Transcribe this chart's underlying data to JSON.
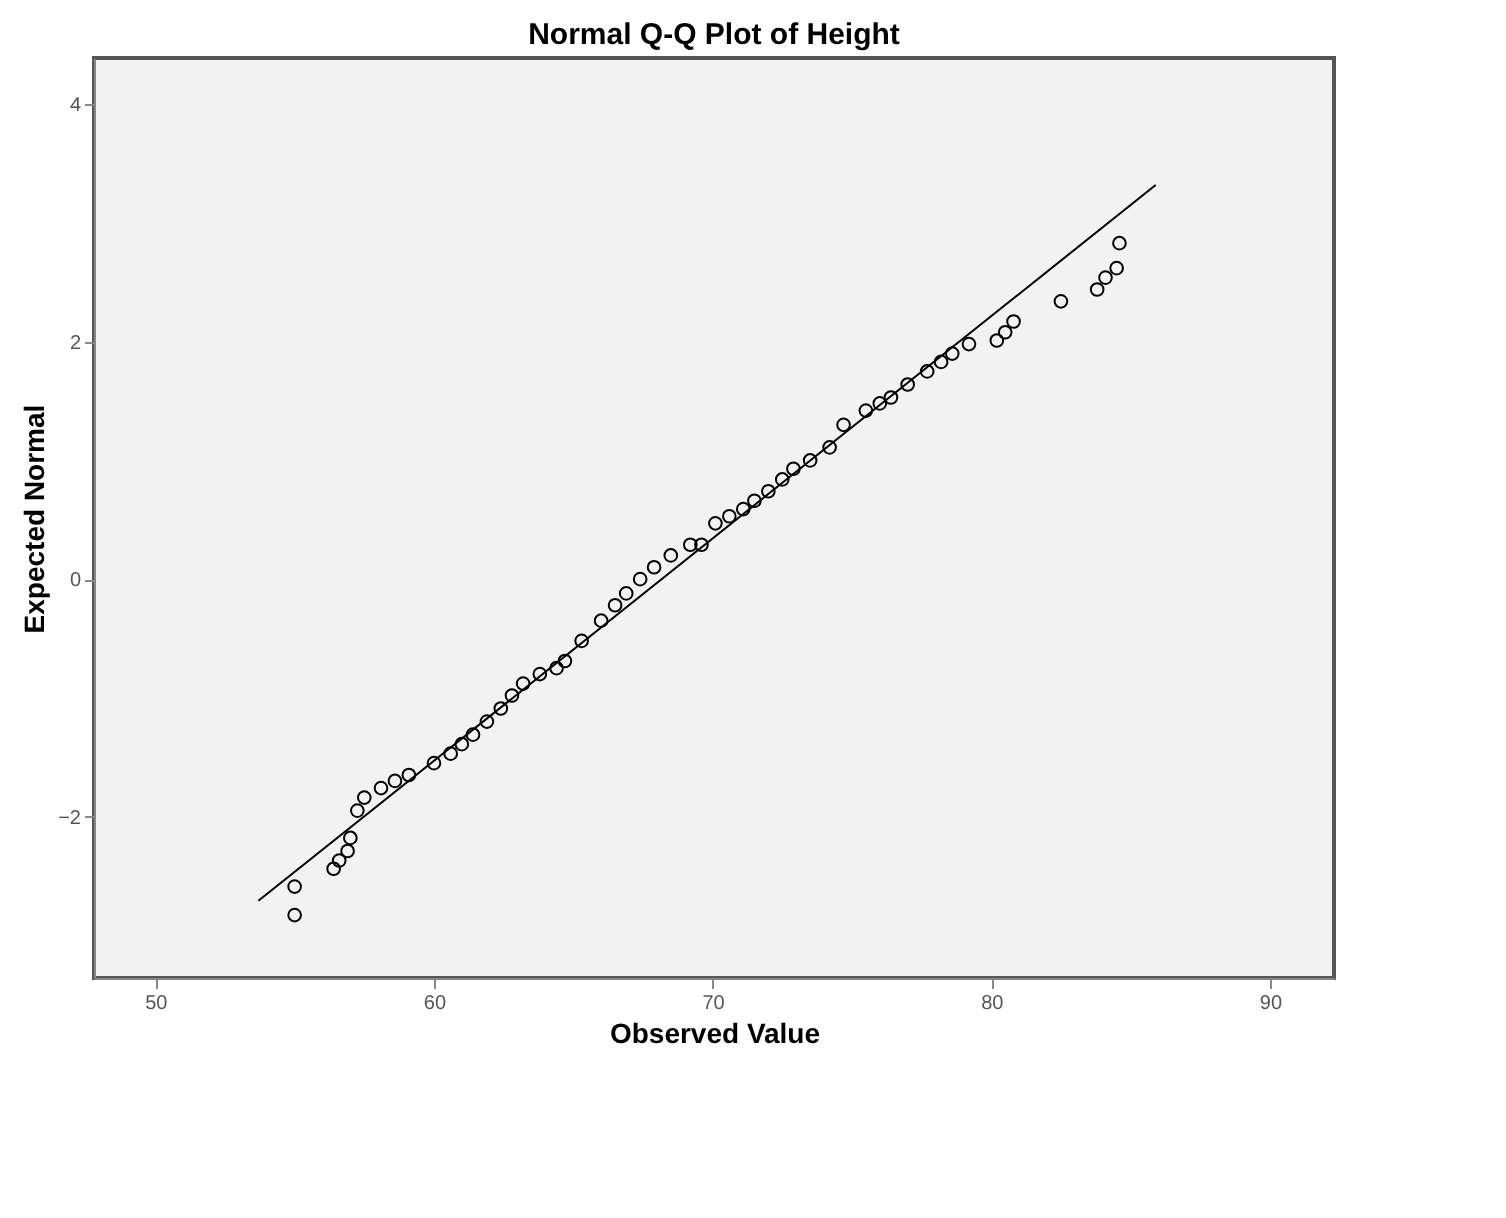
{
  "chart_data": {
    "type": "scatter",
    "title": "Normal Q-Q Plot of Height",
    "xlabel": "Observed Value",
    "ylabel": "Expected Normal",
    "xlim": [
      47.8,
      92.3
    ],
    "ylim": [
      -3.36,
      4.39
    ],
    "xticks": [
      50,
      60,
      70,
      80,
      90
    ],
    "yticks": [
      -2,
      0,
      2,
      4
    ],
    "grid": false,
    "marker": "circle",
    "series": [
      {
        "color": "#000000",
        "x": [
          55.0,
          55.0,
          56.4,
          56.6,
          56.9,
          57.0,
          57.25,
          57.5,
          58.1,
          58.6,
          59.1,
          60.0,
          60.6,
          61.0,
          61.4,
          61.9,
          62.4,
          62.8,
          63.2,
          63.8,
          64.4,
          64.7,
          65.3,
          66.0,
          66.5,
          66.9,
          67.4,
          67.9,
          68.5,
          69.2,
          69.6,
          70.1,
          70.6,
          71.1,
          71.5,
          72.0,
          72.5,
          72.9,
          73.5,
          74.2,
          74.7,
          75.5,
          76.0,
          76.4,
          77.0,
          77.7,
          78.2,
          78.6,
          79.2,
          80.2,
          80.5,
          80.8,
          82.5,
          83.8,
          84.1,
          84.5,
          84.6
        ],
        "values": [
          -2.83,
          -2.59,
          -2.44,
          -2.37,
          -2.29,
          -2.18,
          -1.95,
          -1.84,
          -1.76,
          -1.7,
          -1.65,
          -1.55,
          -1.47,
          -1.39,
          -1.31,
          -1.2,
          -1.09,
          -0.98,
          -0.88,
          -0.8,
          -0.75,
          -0.69,
          -0.52,
          -0.35,
          -0.22,
          -0.12,
          0.0,
          0.1,
          0.2,
          0.29,
          0.29,
          0.47,
          0.53,
          0.59,
          0.66,
          0.74,
          0.84,
          0.93,
          1.0,
          1.11,
          1.3,
          1.42,
          1.48,
          1.53,
          1.64,
          1.75,
          1.83,
          1.9,
          1.98,
          2.01,
          2.08,
          2.17,
          2.34,
          2.44,
          2.54,
          2.62,
          2.83
        ]
      },
      {
        "type": "line",
        "color": "#000000",
        "marker": "none",
        "line_style": "solid",
        "x": [
          53.7,
          85.9
        ],
        "values": [
          -2.71,
          3.32
        ]
      }
    ]
  }
}
